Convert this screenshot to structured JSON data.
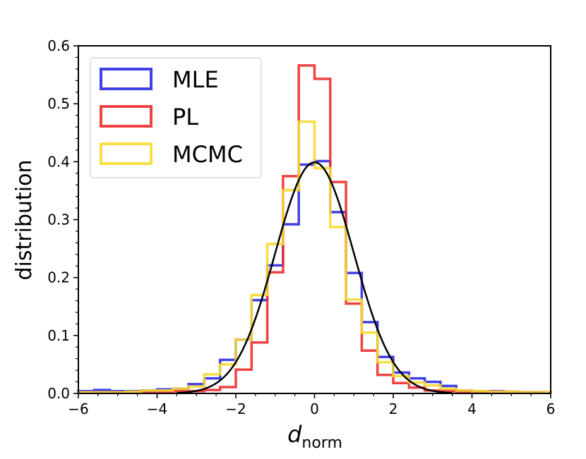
{
  "chart_data": {
    "type": "histogram",
    "xlabel": "d",
    "xlabel_sub": "norm",
    "ylabel": "distribution",
    "xlim": [
      -6,
      6
    ],
    "ylim": [
      0,
      0.6
    ],
    "xticks": [
      -6,
      -4,
      -2,
      0,
      2,
      4,
      6
    ],
    "xtick_labels": [
      "−6",
      "−4",
      "−2",
      "0",
      "2",
      "4",
      "6"
    ],
    "yticks": [
      0.0,
      0.1,
      0.2,
      0.3,
      0.4,
      0.5,
      0.6
    ],
    "ytick_labels": [
      "0.0",
      "0.1",
      "0.2",
      "0.3",
      "0.4",
      "0.5",
      "0.6"
    ],
    "grid": false,
    "legend_position": "top-left",
    "curve": {
      "kind": "standard-normal-pdf",
      "color": "#000000",
      "x_range": [
        -3.5,
        3.5
      ]
    },
    "series": [
      {
        "name": "MLE",
        "color": "#2b2be8",
        "edges": [
          -6.0,
          -5.6,
          -5.2,
          -4.8,
          -4.4,
          -4.0,
          -3.6,
          -3.2,
          -2.8,
          -2.4,
          -2.0,
          -1.6,
          -1.2,
          -0.8,
          -0.4,
          0.0,
          0.4,
          0.8,
          1.2,
          1.6,
          2.0,
          2.4,
          2.8,
          3.2,
          3.6,
          4.0,
          4.4,
          4.8,
          5.2,
          5.6,
          6.0
        ],
        "values": [
          0.004,
          0.006,
          0.004,
          0.004,
          0.005,
          0.007,
          0.008,
          0.016,
          0.026,
          0.058,
          0.093,
          0.161,
          0.221,
          0.292,
          0.395,
          0.401,
          0.313,
          0.208,
          0.123,
          0.063,
          0.036,
          0.026,
          0.02,
          0.013,
          0.005,
          0.004,
          0.004,
          0.003,
          0.002,
          0.002
        ]
      },
      {
        "name": "PL",
        "color": "#ee2d2d",
        "edges": [
          -6.0,
          -5.6,
          -5.2,
          -4.8,
          -4.4,
          -4.0,
          -3.6,
          -3.2,
          -2.8,
          -2.4,
          -2.0,
          -1.6,
          -1.2,
          -0.8,
          -0.4,
          0.0,
          0.4,
          0.8,
          1.2,
          1.6,
          2.0,
          2.4,
          2.8,
          3.2,
          3.6,
          4.0,
          4.4,
          4.8,
          5.2,
          5.6,
          6.0
        ],
        "values": [
          0.002,
          0.002,
          0.002,
          0.002,
          0.002,
          0.003,
          0.004,
          0.004,
          0.006,
          0.011,
          0.041,
          0.088,
          0.209,
          0.375,
          0.566,
          0.543,
          0.365,
          0.155,
          0.074,
          0.032,
          0.018,
          0.01,
          0.005,
          0.004,
          0.003,
          0.003,
          0.003,
          0.002,
          0.002,
          0.002
        ]
      },
      {
        "name": "MCMC",
        "color": "#f7d930",
        "edges": [
          -6.0,
          -5.6,
          -5.2,
          -4.8,
          -4.4,
          -4.0,
          -3.6,
          -3.2,
          -2.8,
          -2.4,
          -2.0,
          -1.6,
          -1.2,
          -0.8,
          -0.4,
          0.0,
          0.4,
          0.8,
          1.2,
          1.6,
          2.0,
          2.4,
          2.8,
          3.2,
          3.6,
          4.0,
          4.4,
          4.8,
          5.2,
          5.6,
          6.0
        ],
        "values": [
          0.002,
          0.002,
          0.002,
          0.003,
          0.005,
          0.005,
          0.008,
          0.012,
          0.033,
          0.05,
          0.093,
          0.17,
          0.258,
          0.351,
          0.469,
          0.389,
          0.287,
          0.162,
          0.105,
          0.054,
          0.03,
          0.019,
          0.014,
          0.008,
          0.005,
          0.004,
          0.003,
          0.003,
          0.002,
          0.002
        ]
      }
    ]
  }
}
